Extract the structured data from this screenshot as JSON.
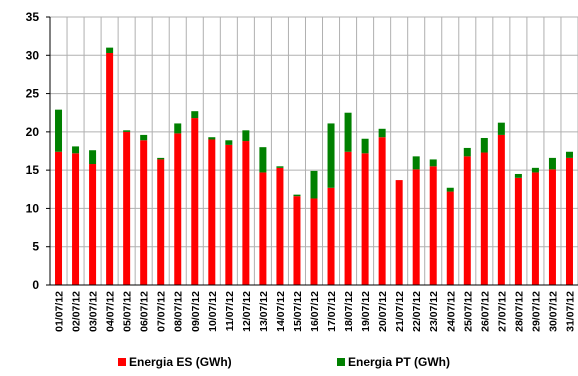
{
  "chart_data": {
    "type": "bar",
    "stacked": true,
    "categories": [
      "01/07/12",
      "02/07/12",
      "03/07/12",
      "04/07/12",
      "05/07/12",
      "06/07/12",
      "07/07/12",
      "08/07/12",
      "09/07/12",
      "10/07/12",
      "11/07/12",
      "12/07/12",
      "13/07/12",
      "14/07/12",
      "15/07/12",
      "16/07/12",
      "17/07/12",
      "18/07/12",
      "19/07/12",
      "20/07/12",
      "21/07/12",
      "22/07/12",
      "23/07/12",
      "24/07/12",
      "25/07/12",
      "26/07/12",
      "27/07/12",
      "28/07/12",
      "29/07/12",
      "30/07/12",
      "31/07/12"
    ],
    "series": [
      {
        "name": "Energia ES (GWh)",
        "color": "#ff0000",
        "values": [
          17.4,
          17.2,
          15.8,
          30.3,
          20.0,
          18.9,
          16.4,
          19.8,
          21.8,
          19.0,
          18.3,
          18.8,
          14.7,
          15.3,
          11.6,
          11.3,
          12.7,
          17.4,
          17.2,
          19.3,
          13.7,
          15.1,
          15.5,
          12.2,
          16.8,
          17.3,
          19.6,
          14.0,
          14.7,
          15.1,
          16.6
        ]
      },
      {
        "name": "Energia PT (GWh)",
        "color": "#008000",
        "values": [
          5.5,
          0.9,
          1.8,
          0.7,
          0.2,
          0.7,
          0.2,
          1.3,
          0.9,
          0.3,
          0.6,
          1.4,
          3.3,
          0.2,
          0.2,
          3.6,
          8.4,
          5.1,
          1.9,
          1.1,
          0.0,
          1.7,
          0.9,
          0.5,
          1.1,
          1.9,
          1.6,
          0.5,
          0.6,
          1.5,
          0.8
        ]
      }
    ],
    "ylim": [
      0,
      35
    ],
    "yticks": [
      0,
      5,
      10,
      15,
      20,
      25,
      30,
      35
    ],
    "grid": true,
    "legend_position": "bottom"
  }
}
